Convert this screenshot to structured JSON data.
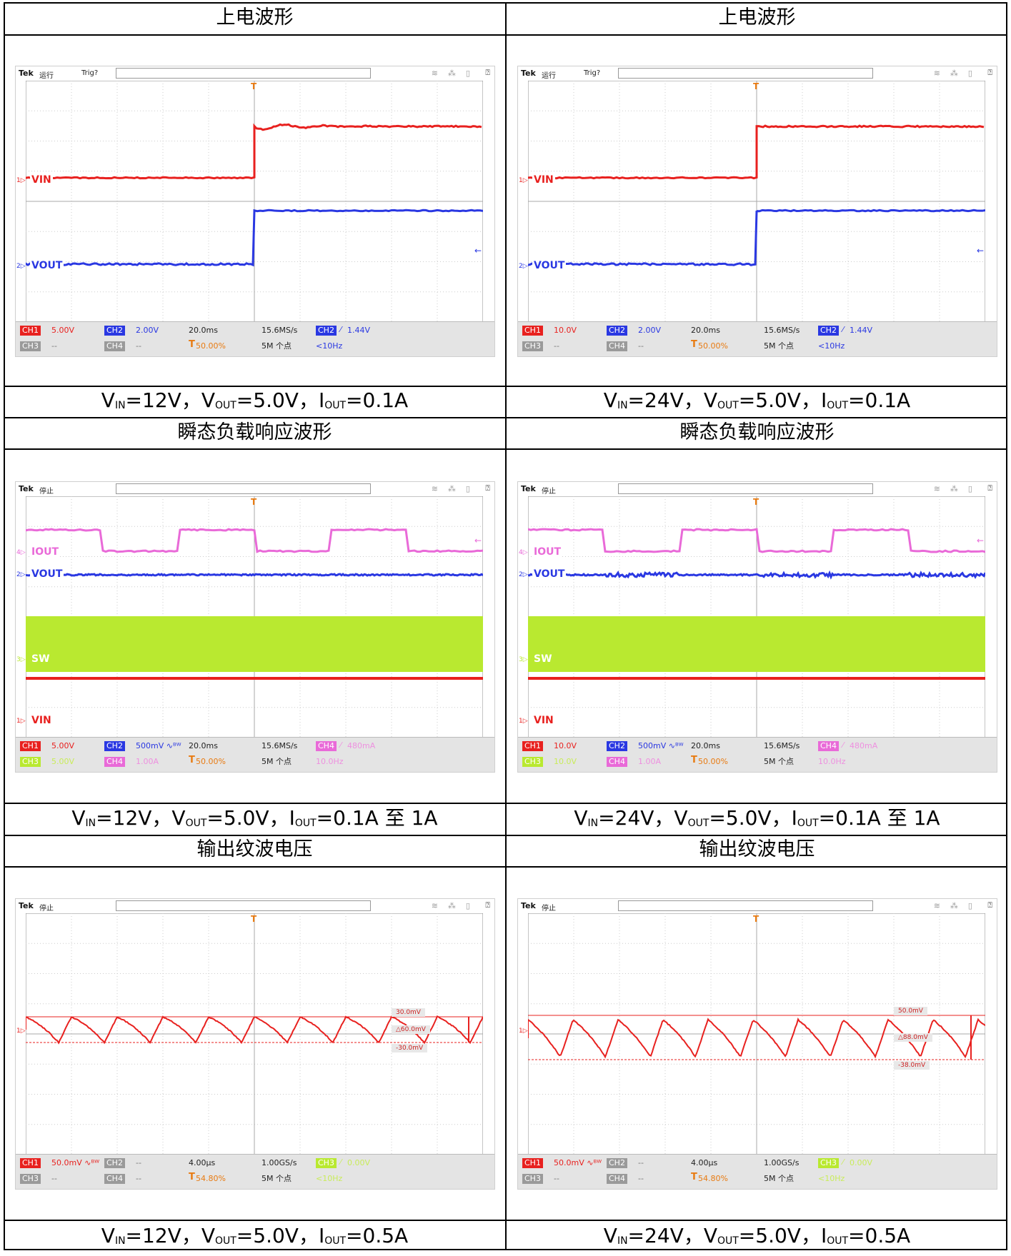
{
  "cells": [
    {
      "title": "上电波形",
      "caption": {
        "vin": "12V",
        "vout": "5.0V",
        "iout": "0.1A"
      },
      "scope": {
        "state": "运行",
        "trig": "Trig?",
        "labels": [
          {
            "ch": "1",
            "name": "VIN",
            "color": "#e8211f"
          },
          {
            "ch": "2",
            "name": "VOUT",
            "color": "#2a38e2"
          }
        ],
        "status": {
          "row1": [
            {
              "tag": "CH1",
              "tagcolor": "#e8211f",
              "value": "5.00V",
              "valcolor": "#e8211f"
            },
            {
              "tag": "CH2",
              "tagcolor": "#2a38e2",
              "value": "2.00V",
              "valcolor": "#2a38e2"
            }
          ],
          "row2": [
            {
              "tag": "CH3",
              "tagcolor": "#9a9a9a",
              "value": "--",
              "valcolor": "#777"
            },
            {
              "tag": "CH4",
              "tagcolor": "#9a9a9a",
              "value": "--",
              "valcolor": "#777"
            }
          ],
          "timebase": "20.0ms",
          "trigpos": "50.00%",
          "rate": "15.6MS/s",
          "points": "5M 个点",
          "trigch": "CH2",
          "trigchcolor": "#2a38e2",
          "triglevel": "1.44V",
          "trigfreq": "<10Hz",
          "trigtextcolor": "#2a38e2"
        }
      }
    },
    {
      "title": "上电波形",
      "caption": {
        "vin": "24V",
        "vout": "5.0V",
        "iout": "0.1A"
      },
      "scope": {
        "state": "运行",
        "trig": "Trig?",
        "labels": [
          {
            "ch": "1",
            "name": "VIN",
            "color": "#e8211f"
          },
          {
            "ch": "2",
            "name": "VOUT",
            "color": "#2a38e2"
          }
        ],
        "status": {
          "row1": [
            {
              "tag": "CH1",
              "tagcolor": "#e8211f",
              "value": "10.0V",
              "valcolor": "#e8211f"
            },
            {
              "tag": "CH2",
              "tagcolor": "#2a38e2",
              "value": "2.00V",
              "valcolor": "#2a38e2"
            }
          ],
          "row2": [
            {
              "tag": "CH3",
              "tagcolor": "#9a9a9a",
              "value": "--",
              "valcolor": "#777"
            },
            {
              "tag": "CH4",
              "tagcolor": "#9a9a9a",
              "value": "--",
              "valcolor": "#777"
            }
          ],
          "timebase": "20.0ms",
          "trigpos": "50.00%",
          "rate": "15.6MS/s",
          "points": "5M 个点",
          "trigch": "CH2",
          "trigchcolor": "#2a38e2",
          "triglevel": "1.44V",
          "trigfreq": "<10Hz",
          "trigtextcolor": "#2a38e2"
        }
      }
    },
    {
      "title": "瞬态负载响应波形",
      "caption": {
        "vin": "12V",
        "vout": "5.0V",
        "iout": "0.1A 至 1A"
      },
      "scope": {
        "state": "停止",
        "trig": "",
        "labels": [
          {
            "ch": "4",
            "name": "IOUT",
            "color": "#e96ad8"
          },
          {
            "ch": "2",
            "name": "VOUT",
            "color": "#2a38e2"
          },
          {
            "ch": "3",
            "name": "SW",
            "color": "#b9e930"
          },
          {
            "ch": "1",
            "name": "VIN",
            "color": "#e8211f"
          }
        ],
        "status": {
          "row1": [
            {
              "tag": "CH1",
              "tagcolor": "#e8211f",
              "value": "5.00V",
              "valcolor": "#e8211f"
            },
            {
              "tag": "CH2",
              "tagcolor": "#2a38e2",
              "value": "500mV ∿ᴮᵂ",
              "valcolor": "#2a38e2"
            }
          ],
          "row2": [
            {
              "tag": "CH3",
              "tagcolor": "#b9e930",
              "value": "5.00V",
              "valcolor": "#c9ec5a"
            },
            {
              "tag": "CH4",
              "tagcolor": "#e96ad8",
              "value": "1.00A",
              "valcolor": "#ee90e0"
            }
          ],
          "timebase": "20.0ms",
          "trigpos": "50.00%",
          "rate": "15.6MS/s",
          "points": "5M 个点",
          "trigch": "CH4",
          "trigchcolor": "#e96ad8",
          "triglevel": "480mA",
          "trigfreq": "10.0Hz",
          "trigtextcolor": "#ee90e0"
        }
      }
    },
    {
      "title": "瞬态负载响应波形",
      "caption": {
        "vin": "24V",
        "vout": "5.0V",
        "iout": "0.1A 至 1A"
      },
      "scope": {
        "state": "停止",
        "trig": "",
        "labels": [
          {
            "ch": "4",
            "name": "IOUT",
            "color": "#e96ad8"
          },
          {
            "ch": "2",
            "name": "VOUT",
            "color": "#2a38e2"
          },
          {
            "ch": "3",
            "name": "SW",
            "color": "#b9e930"
          },
          {
            "ch": "1",
            "name": "VIN",
            "color": "#e8211f"
          }
        ],
        "status": {
          "row1": [
            {
              "tag": "CH1",
              "tagcolor": "#e8211f",
              "value": "10.0V",
              "valcolor": "#e8211f"
            },
            {
              "tag": "CH2",
              "tagcolor": "#2a38e2",
              "value": "500mV ∿ᴮᵂ",
              "valcolor": "#2a38e2"
            }
          ],
          "row2": [
            {
              "tag": "CH3",
              "tagcolor": "#b9e930",
              "value": "10.0V",
              "valcolor": "#c9ec5a"
            },
            {
              "tag": "CH4",
              "tagcolor": "#e96ad8",
              "value": "1.00A",
              "valcolor": "#ee90e0"
            }
          ],
          "timebase": "20.0ms",
          "trigpos": "50.00%",
          "rate": "15.6MS/s",
          "points": "5M 个点",
          "trigch": "CH4",
          "trigchcolor": "#e96ad8",
          "triglevel": "480mA",
          "trigfreq": "10.0Hz",
          "trigtextcolor": "#ee90e0"
        }
      }
    },
    {
      "title": "输出纹波电压",
      "caption": {
        "vin": "12V",
        "vout": "5.0V",
        "iout": "0.5A"
      },
      "scope": {
        "state": "停止",
        "trig": "",
        "labels": [
          {
            "ch": "1",
            "name": "",
            "color": "#e8211f"
          }
        ],
        "cursors": {
          "upper": "30.0mV",
          "delta": "△60.0mV",
          "lower": "-30.0mV"
        },
        "status": {
          "row1": [
            {
              "tag": "CH1",
              "tagcolor": "#e8211f",
              "value": "50.0mV ∿ᴮᵂ",
              "valcolor": "#e8211f"
            },
            {
              "tag": "CH2",
              "tagcolor": "#9a9a9a",
              "value": "--",
              "valcolor": "#777"
            }
          ],
          "row2": [
            {
              "tag": "CH3",
              "tagcolor": "#9a9a9a",
              "value": "--",
              "valcolor": "#777"
            },
            {
              "tag": "CH4",
              "tagcolor": "#9a9a9a",
              "value": "--",
              "valcolor": "#777"
            }
          ],
          "timebase": "4.00µs",
          "trigpos": "54.80%",
          "rate": "1.00GS/s",
          "points": "5M 个点",
          "trigch": "CH3",
          "trigchcolor": "#b9e930",
          "triglevel": "0.00V",
          "trigfreq": "<10Hz",
          "trigtextcolor": "#c9ec5a"
        }
      }
    },
    {
      "title": "输出纹波电压",
      "caption": {
        "vin": "24V",
        "vout": "5.0V",
        "iout": "0.5A"
      },
      "scope": {
        "state": "停止",
        "trig": "",
        "labels": [
          {
            "ch": "1",
            "name": "",
            "color": "#e8211f"
          }
        ],
        "cursors": {
          "upper": "50.0mV",
          "delta": "△88.0mV",
          "lower": "-38.0mV"
        },
        "status": {
          "row1": [
            {
              "tag": "CH1",
              "tagcolor": "#e8211f",
              "value": "50.0mV ∿ᴮᵂ",
              "valcolor": "#e8211f"
            },
            {
              "tag": "CH2",
              "tagcolor": "#9a9a9a",
              "value": "--",
              "valcolor": "#777"
            }
          ],
          "row2": [
            {
              "tag": "CH3",
              "tagcolor": "#9a9a9a",
              "value": "--",
              "valcolor": "#777"
            },
            {
              "tag": "CH4",
              "tagcolor": "#9a9a9a",
              "value": "--",
              "valcolor": "#777"
            }
          ],
          "timebase": "4.00µs",
          "trigpos": "54.80%",
          "rate": "1.00GS/s",
          "points": "5M 个点",
          "trigch": "CH3",
          "trigchcolor": "#b9e930",
          "triglevel": "0.00V",
          "trigfreq": "<10Hz",
          "trigtextcolor": "#c9ec5a"
        }
      }
    }
  ],
  "tek_logo": "Tek"
}
